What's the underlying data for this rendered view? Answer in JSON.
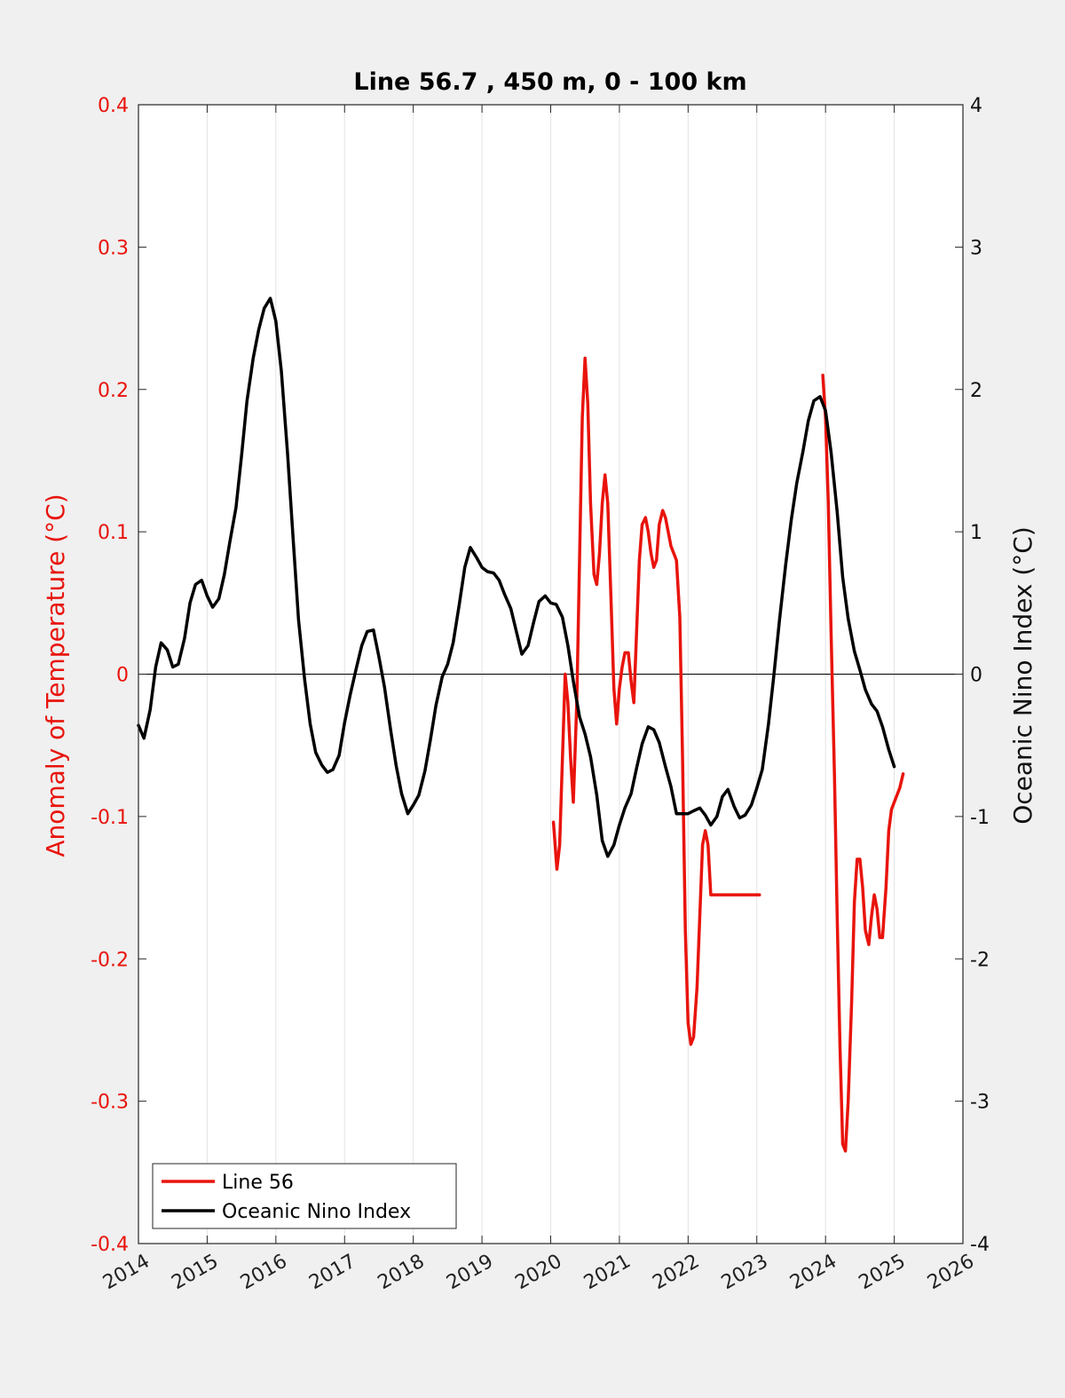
{
  "chart_data": {
    "type": "line",
    "title": "Line 56.7 , 450 m, 0 - 100 km",
    "ylabel_left": "Anomaly of Temperature (°C)",
    "ylabel_right": "Oceanic Nino Index (°C)",
    "xlim": [
      2014,
      2026
    ],
    "ylim_left": [
      -0.4,
      0.4
    ],
    "ylim_right": [
      -4,
      4
    ],
    "x_ticks": [
      "2014",
      "2015",
      "2016",
      "2017",
      "2018",
      "2019",
      "2020",
      "2021",
      "2022",
      "2023",
      "2024",
      "2025",
      "2026"
    ],
    "y_ticks_left": [
      "-0.4",
      "-0.3",
      "-0.2",
      "-0.1",
      "0",
      "0.1",
      "0.2",
      "0.3",
      "0.4"
    ],
    "y_ticks_right": [
      "-4",
      "-3",
      "-2",
      "-1",
      "0",
      "1",
      "2",
      "3",
      "4"
    ],
    "grid": "vertical",
    "legend_position": "bottom-left",
    "series": [
      {
        "name": "Line 56",
        "axis": "left",
        "color": "#e8140c",
        "segments": [
          {
            "x": [
              2020.04,
              2020.09,
              2020.13,
              2020.17,
              2020.21,
              2020.25,
              2020.29,
              2020.33,
              2020.38,
              2020.42,
              2020.46,
              2020.5,
              2020.54,
              2020.58,
              2020.63,
              2020.67,
              2020.71,
              2020.75,
              2020.79,
              2020.83,
              2020.88,
              2020.92,
              2020.96,
              2021.0,
              2021.04,
              2021.08,
              2021.13,
              2021.17,
              2021.21,
              2021.25,
              2021.29,
              2021.33,
              2021.38,
              2021.42,
              2021.46,
              2021.5,
              2021.54,
              2021.58,
              2021.63,
              2021.67,
              2021.71,
              2021.75,
              2021.79,
              2021.83,
              2021.88,
              2021.92,
              2021.96,
              2022.0,
              2022.04,
              2022.08,
              2022.13,
              2022.17,
              2022.21,
              2022.25,
              2022.29,
              2022.33,
              2022.38,
              2022.42,
              2022.46,
              2022.5,
              2022.54,
              2022.58,
              2022.63,
              2022.67,
              2022.71,
              2022.75,
              2022.79,
              2022.83,
              2022.88,
              2022.92,
              2022.96,
              2023.0,
              2023.04
            ],
            "y": [
              -0.104,
              -0.137,
              -0.12,
              -0.06,
              0.0,
              -0.02,
              -0.06,
              -0.09,
              -0.02,
              0.08,
              0.18,
              0.222,
              0.19,
              0.12,
              0.07,
              0.063,
              0.085,
              0.12,
              0.14,
              0.12,
              0.05,
              -0.01,
              -0.035,
              -0.01,
              0.005,
              0.015,
              0.015,
              -0.005,
              -0.02,
              0.03,
              0.08,
              0.105,
              0.11,
              0.1,
              0.085,
              0.075,
              0.08,
              0.105,
              0.115,
              0.11,
              0.1,
              0.09,
              0.085,
              0.08,
              0.04,
              -0.06,
              -0.18,
              -0.245,
              -0.26,
              -0.255,
              -0.22,
              -0.17,
              -0.12,
              -0.11,
              -0.12,
              -0.155,
              -0.155,
              -0.155,
              -0.155,
              -0.155,
              -0.155,
              -0.155,
              -0.155,
              -0.155,
              -0.155,
              -0.155,
              -0.155,
              -0.155,
              -0.155,
              -0.155,
              -0.155,
              -0.155,
              -0.155
            ]
          },
          {
            "x": [
              2023.96,
              2024.0,
              2024.04,
              2024.08,
              2024.13,
              2024.17,
              2024.21,
              2024.25,
              2024.29,
              2024.33,
              2024.38,
              2024.42,
              2024.46,
              2024.5,
              2024.54,
              2024.58,
              2024.63,
              2024.67,
              2024.71,
              2024.75,
              2024.79,
              2024.83,
              2024.88,
              2024.92,
              2024.96,
              2025.0,
              2025.04,
              2025.08,
              2025.13
            ],
            "y": [
              0.21,
              0.18,
              0.12,
              0.03,
              -0.07,
              -0.17,
              -0.26,
              -0.33,
              -0.335,
              -0.3,
              -0.23,
              -0.16,
              -0.13,
              -0.13,
              -0.15,
              -0.18,
              -0.19,
              -0.17,
              -0.155,
              -0.165,
              -0.185,
              -0.185,
              -0.15,
              -0.11,
              -0.095,
              -0.09,
              -0.085,
              -0.08,
              -0.07
            ]
          }
        ]
      },
      {
        "name": "Oceanic Nino Index",
        "axis": "right",
        "color": "#000000",
        "segments": [
          {
            "x": [
              2014.0,
              2014.08,
              2014.17,
              2014.25,
              2014.33,
              2014.42,
              2014.5,
              2014.58,
              2014.67,
              2014.75,
              2014.83,
              2014.92,
              2015.0,
              2015.08,
              2015.17,
              2015.25,
              2015.33,
              2015.42,
              2015.5,
              2015.58,
              2015.67,
              2015.75,
              2015.83,
              2015.92,
              2016.0,
              2016.08,
              2016.17,
              2016.25,
              2016.33,
              2016.42,
              2016.5,
              2016.58,
              2016.67,
              2016.75,
              2016.83,
              2016.92,
              2017.0,
              2017.08,
              2017.17,
              2017.25,
              2017.33,
              2017.42,
              2017.5,
              2017.58,
              2017.67,
              2017.75,
              2017.83,
              2017.92,
              2018.0,
              2018.08,
              2018.17,
              2018.25,
              2018.33,
              2018.42,
              2018.5,
              2018.58,
              2018.67,
              2018.75,
              2018.83,
              2018.92,
              2019.0,
              2019.08,
              2019.17,
              2019.25,
              2019.33,
              2019.42,
              2019.5,
              2019.58,
              2019.67,
              2019.75,
              2019.83,
              2019.92,
              2020.0,
              2020.08,
              2020.17,
              2020.25,
              2020.33,
              2020.42,
              2020.5,
              2020.58,
              2020.67,
              2020.75,
              2020.83,
              2020.92,
              2021.0,
              2021.08,
              2021.17,
              2021.25,
              2021.33,
              2021.42,
              2021.5,
              2021.58,
              2021.67,
              2021.75,
              2021.83,
              2021.92,
              2022.0,
              2022.08,
              2022.17,
              2022.25,
              2022.33,
              2022.42,
              2022.5,
              2022.58,
              2022.67,
              2022.75,
              2022.83,
              2022.92,
              2023.0,
              2023.08,
              2023.17,
              2023.25,
              2023.33,
              2023.42,
              2023.5,
              2023.58,
              2023.67,
              2023.75,
              2023.83,
              2023.92,
              2024.0,
              2024.08,
              2024.17,
              2024.25,
              2024.33,
              2024.42,
              2024.5,
              2024.58,
              2024.67,
              2024.75,
              2024.83,
              2024.92,
              2025.0
            ],
            "y": [
              -0.36,
              -0.45,
              -0.25,
              0.05,
              0.22,
              0.17,
              0.05,
              0.07,
              0.25,
              0.5,
              0.63,
              0.66,
              0.55,
              0.47,
              0.53,
              0.7,
              0.93,
              1.17,
              1.53,
              1.92,
              2.22,
              2.42,
              2.57,
              2.64,
              2.48,
              2.13,
              1.55,
              0.96,
              0.38,
              -0.04,
              -0.35,
              -0.55,
              -0.64,
              -0.69,
              -0.67,
              -0.57,
              -0.34,
              -0.15,
              0.04,
              0.2,
              0.3,
              0.31,
              0.12,
              -0.09,
              -0.39,
              -0.64,
              -0.84,
              -0.98,
              -0.92,
              -0.85,
              -0.68,
              -0.46,
              -0.22,
              -0.02,
              0.07,
              0.22,
              0.49,
              0.75,
              0.89,
              0.82,
              0.75,
              0.72,
              0.71,
              0.66,
              0.56,
              0.46,
              0.3,
              0.14,
              0.2,
              0.36,
              0.51,
              0.55,
              0.5,
              0.49,
              0.4,
              0.2,
              -0.05,
              -0.3,
              -0.42,
              -0.58,
              -0.85,
              -1.17,
              -1.28,
              -1.2,
              -1.06,
              -0.94,
              -0.84,
              -0.66,
              -0.49,
              -0.37,
              -0.39,
              -0.48,
              -0.65,
              -0.79,
              -0.98,
              -0.98,
              -0.98,
              -0.96,
              -0.94,
              -0.99,
              -1.06,
              -1.0,
              -0.86,
              -0.81,
              -0.93,
              -1.01,
              -0.99,
              -0.92,
              -0.8,
              -0.67,
              -0.35,
              0.0,
              0.38,
              0.77,
              1.08,
              1.34,
              1.56,
              1.78,
              1.92,
              1.95,
              1.85,
              1.56,
              1.14,
              0.68,
              0.39,
              0.16,
              0.03,
              -0.11,
              -0.21,
              -0.26,
              -0.37,
              -0.53,
              -0.65
            ]
          }
        ]
      }
    ]
  }
}
